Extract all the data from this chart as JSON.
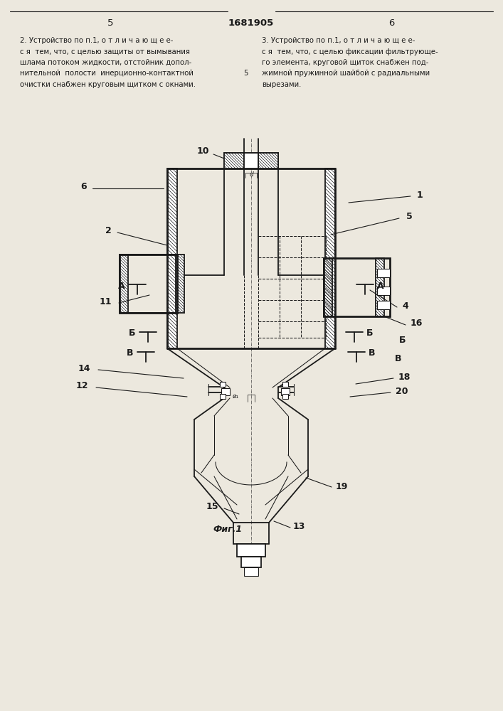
{
  "page_num_left": "5",
  "page_num_center": "1681905",
  "page_num_right": "6",
  "text_col1": [
    "2. Устройство по п.1, о т л и ч а ю щ е е-",
    "с я  тем, что, с целью защиты от вымывания",
    "шлама потоком жидкости, отстойник допол-",
    "нительной  полости  инерционно-контактной",
    "очистки снабжен круговым щитком с окнами."
  ],
  "text_col2": [
    "3. Устройство по п.1, о т л и ч а ю щ е е-",
    "с я  тем, что, с целью фиксации фильтрующе-",
    "го элемента, круговой щиток снабжен под-",
    "жимной пружинной шайбой с радиальными",
    "вырезами."
  ],
  "line_ref_num": "5",
  "fig_caption": "Фиг.1",
  "bg_color": "#ece8de",
  "lc": "#1a1a1a"
}
